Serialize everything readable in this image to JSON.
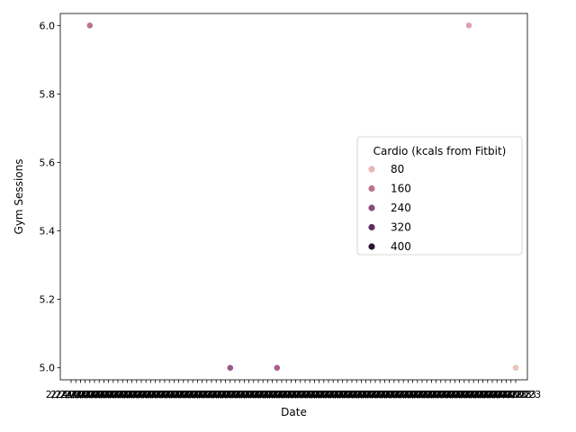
{
  "chart_data": {
    "type": "scatter",
    "xlabel": "Date",
    "ylabel": "Gym Sessions",
    "ylim": [
      4.965,
      6.035
    ],
    "yticks": [
      5.0,
      5.2,
      5.4,
      5.6,
      5.8,
      6.0
    ],
    "ytick_labels": [
      "5.0",
      "5.2",
      "5.4",
      "5.6",
      "5.8",
      "6.0"
    ],
    "x_categories_count": 96,
    "x_tick_label_text": "2/24/2023",
    "grid": false,
    "legend": {
      "title": "Cardio (kcals from Fitbit)",
      "placement": "center-right",
      "entries": [
        {
          "label": "80",
          "color": "#e8b6b3"
        },
        {
          "label": "160",
          "color": "#b9758f"
        },
        {
          "label": "240",
          "color": "#8a4c7d"
        },
        {
          "label": "320",
          "color": "#5e2c5e"
        },
        {
          "label": "400",
          "color": "#2a1435"
        }
      ]
    },
    "points": [
      {
        "x_index": 4,
        "y": 6.0,
        "color": "#b9758f"
      },
      {
        "x_index": 34,
        "y": 5.0,
        "color": "#9a5788"
      },
      {
        "x_index": 44,
        "y": 5.0,
        "color": "#a4608a"
      },
      {
        "x_index": 85,
        "y": 6.0,
        "color": "#d9a3ad"
      },
      {
        "x_index": 95,
        "y": 5.0,
        "color": "#ebc2c0"
      }
    ]
  }
}
